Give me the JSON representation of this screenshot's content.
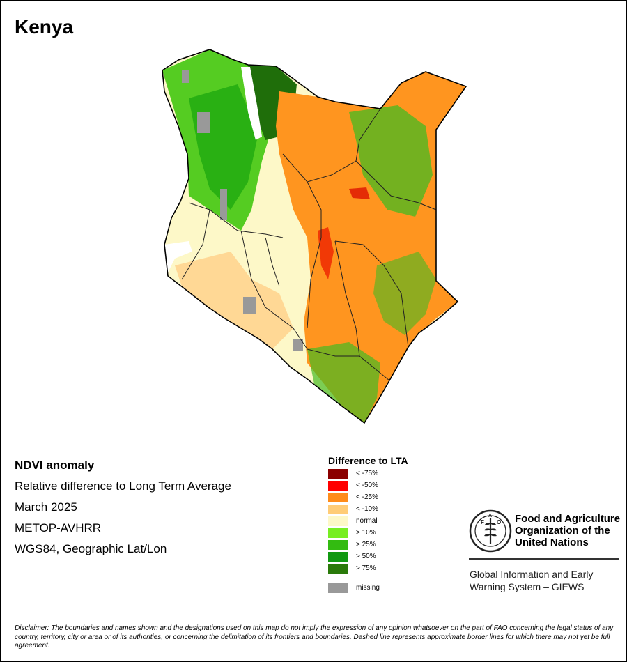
{
  "map_title": "Kenya",
  "info": {
    "line1": "NDVI anomaly",
    "line2": "Relative difference to Long Term Average",
    "line3": "March 2025",
    "line4": "METOP-AVHRR",
    "line5": "WGS84, Geographic Lat/Lon"
  },
  "legend": {
    "title": "Difference to LTA",
    "items": [
      {
        "label": "< -75%",
        "color": "#8b0000"
      },
      {
        "label": "< -50%",
        "color": "#ff0000"
      },
      {
        "label": "< -25%",
        "color": "#ff8c1a"
      },
      {
        "label": "< -10%",
        "color": "#ffcc77"
      },
      {
        "label": "normal",
        "color": "#fdf8c8"
      },
      {
        "label": "> 10%",
        "color": "#77ee22"
      },
      {
        "label": "> 25%",
        "color": "#33bb11"
      },
      {
        "label": "> 50%",
        "color": "#119911"
      },
      {
        "label": "> 75%",
        "color": "#2a7a0a"
      }
    ],
    "missing": {
      "label": "missing",
      "color": "#999999"
    }
  },
  "fao": {
    "logo_text": "FAO",
    "motto": "FIAT PANIS",
    "name_line1": "Food and Agriculture",
    "name_line2": "Organization of the",
    "name_line3": "United Nations",
    "giews_line1": "Global Information and Early",
    "giews_line2": "Warning System – GIEWS"
  },
  "disclaimer": "Disclaimer: The boundaries and names shown and the designations used on this map do not imply the expression of any opinion whatsoever on the part of FAO concerning the legal status of any country, territory, city or area or of its authorities, or concerning the delimitation of its frontiers and boundaries. Dashed line represents approximate border lines for which there may not yet be full agreement."
}
